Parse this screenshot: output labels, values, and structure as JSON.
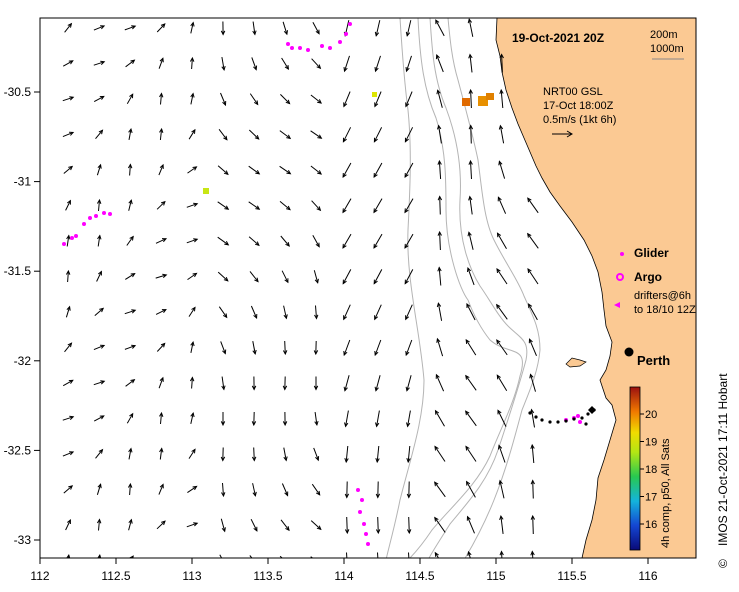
{
  "title": "19-Oct-2021 20Z",
  "scale": {
    "depth1": "200m",
    "depth2": "1000m"
  },
  "current_info": {
    "line1": "NRT00 GSL",
    "line2": "17-Oct 18:00Z",
    "line3": "0.5m/s (1kt 6h)"
  },
  "legend": {
    "glider": "Glider",
    "argo": "Argo",
    "drifters1": "drifters@6h",
    "drifters2": "to 18/10 12Z"
  },
  "city": "Perth",
  "colorbar": {
    "label": "4h comp, p50, All Sats",
    "ticks": [
      "16",
      "17",
      "18",
      "19",
      "20"
    ]
  },
  "credit": "IMOS 21-Oct-2021 17:11 Hobart",
  "copyright_symbol": "©",
  "axes": {
    "x_ticks": [
      "112",
      "112.5",
      "113",
      "113.5",
      "114",
      "114.5",
      "115",
      "115.5",
      "116"
    ],
    "y_ticks": [
      "-30.5",
      "-31",
      "-31.5",
      "-32",
      "-32.5",
      "-33"
    ]
  },
  "colors": {
    "land": "#fbc993",
    "arrow": "#000000",
    "drifter": "#ff00ff",
    "bathy": "#b4b4b4"
  }
}
